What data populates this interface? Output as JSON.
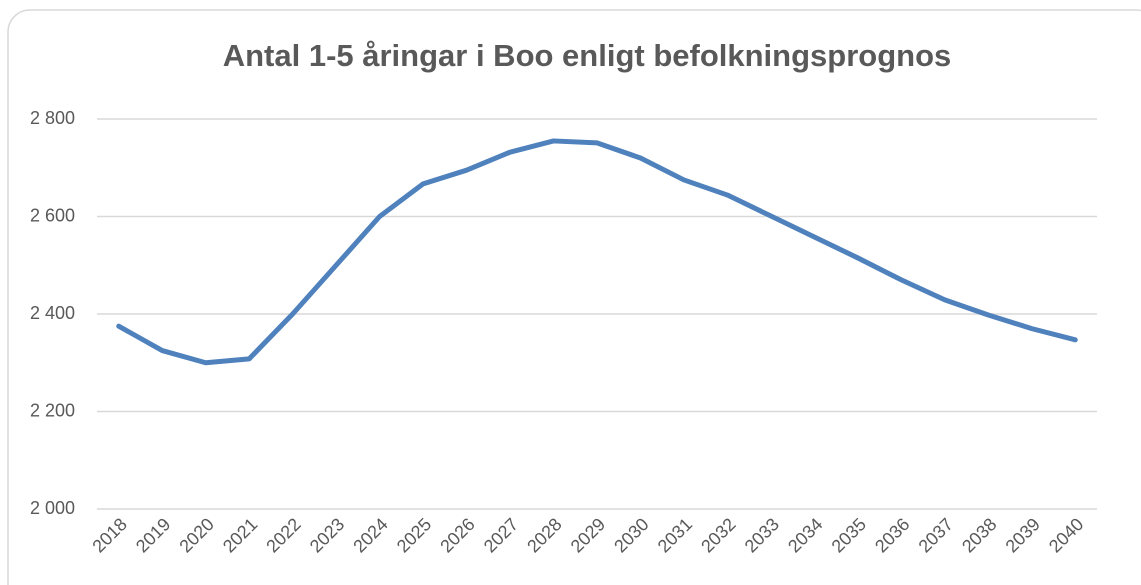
{
  "chart_data": {
    "type": "line",
    "title": "Antal 1-5 åringar i Boo enligt befolkningsprognos",
    "categories": [
      "2018",
      "2019",
      "2020",
      "2021",
      "2022",
      "2023",
      "2024",
      "2025",
      "2026",
      "2027",
      "2028",
      "2029",
      "2030",
      "2031",
      "2032",
      "2033",
      "2034",
      "2035",
      "2036",
      "2037",
      "2038",
      "2039",
      "2040"
    ],
    "series": [
      {
        "name": "Antal 1-5 åringar",
        "color": "#4f81bd",
        "values": [
          2375,
          2325,
          2300,
          2308,
          2400,
          2500,
          2600,
          2667,
          2695,
          2732,
          2755,
          2751,
          2720,
          2675,
          2644,
          2601,
          2558,
          2515,
          2470,
          2429,
          2398,
          2370,
          2347
        ]
      }
    ],
    "ylim": [
      2000,
      2800
    ],
    "yticks": [
      {
        "value": 2000,
        "label": "2 000"
      },
      {
        "value": 2200,
        "label": "2 200"
      },
      {
        "value": 2400,
        "label": "2 400"
      },
      {
        "value": 2600,
        "label": "2 600"
      },
      {
        "value": 2800,
        "label": "2 800"
      }
    ],
    "grid": true
  }
}
